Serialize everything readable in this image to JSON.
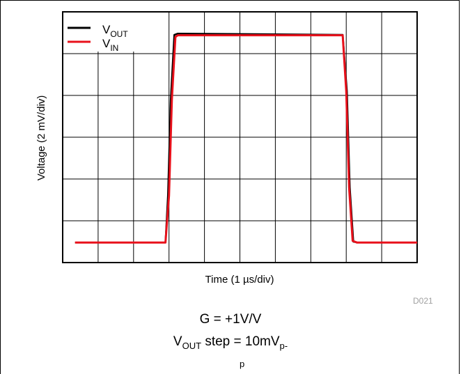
{
  "chart_data": {
    "type": "line",
    "title": "",
    "xlabel": "Time (1 µs/div)",
    "ylabel": "Voltage (2 mV/div)",
    "x_divisions": 10,
    "y_divisions": 6,
    "xlim": [
      0,
      10
    ],
    "ylim": [
      0,
      6
    ],
    "grid": true,
    "legend_position": "top-left",
    "series": [
      {
        "name": "V_OUT",
        "legend": {
          "main": "V",
          "sub": "OUT"
        },
        "color": "#000000",
        "x": [
          0.35,
          2.9,
          2.97,
          3.05,
          3.15,
          3.25,
          7.9,
          8.02,
          8.1,
          8.2,
          8.3,
          10.0
        ],
        "y": [
          0.48,
          0.48,
          1.6,
          3.9,
          5.45,
          5.48,
          5.45,
          4.1,
          1.8,
          0.5,
          0.48,
          0.48
        ]
      },
      {
        "name": "V_IN",
        "legend": {
          "main": "V",
          "sub": "IN"
        },
        "color": "#e8111b",
        "x": [
          0.35,
          2.9,
          3.0,
          3.08,
          3.18,
          3.25,
          7.9,
          8.0,
          8.08,
          8.18,
          8.3,
          10.0
        ],
        "y": [
          0.48,
          0.48,
          1.6,
          3.9,
          5.4,
          5.44,
          5.44,
          4.1,
          1.8,
          0.52,
          0.48,
          0.48
        ]
      }
    ]
  },
  "figure_id": "D021",
  "caption": {
    "gain": "G = +1V/V",
    "step_main": "V",
    "step_sub": "OUT",
    "step_text": " step = 10mV",
    "step_unit_sub": "p-",
    "trailing": "p"
  }
}
